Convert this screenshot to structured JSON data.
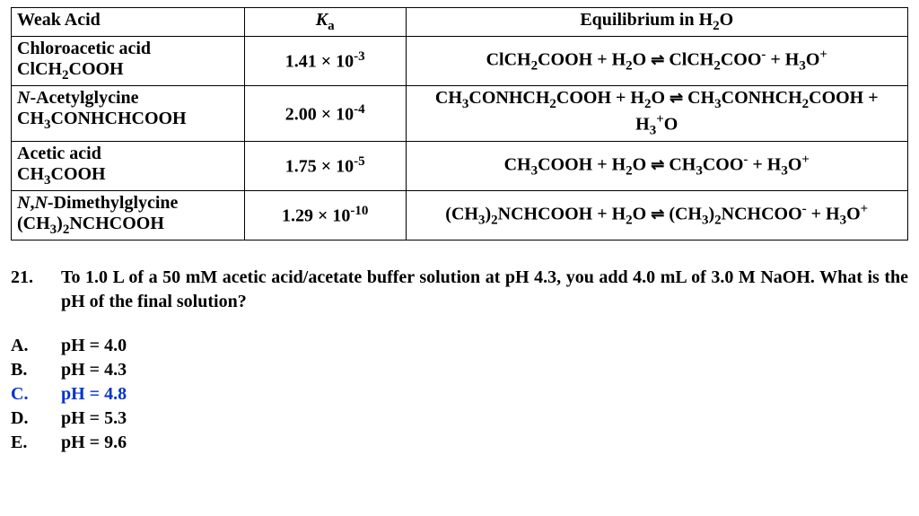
{
  "table": {
    "headers": {
      "col1": "Weak Acid",
      "col2_html": "<span class='ital'>K</span><span class='sub'>a</span>",
      "col3_html": "Equilibrium in H<span class='sub'>2</span>O"
    },
    "rows": [
      {
        "acid_html": "Chloroacetic acid<br>ClCH<span class='sub'>2</span>COOH",
        "ka_html": "1.41 × 10<span class='sup'>-3</span>",
        "eq_html": "ClCH<span class='sub'>2</span>COOH + H<span class='sub'>2</span>O <span class='eqarrow'>⇌</span> ClCH<span class='sub'>2</span>COO<span class='sup'>-</span> + H<span class='sub'>3</span>O<span class='sup'>+</span>"
      },
      {
        "acid_html": "<span class='ital'>N</span>-Acetylglycine<br>CH<span class='sub'>3</span>CONHCHCOOH",
        "ka_html": "2.00 × 10<span class='sup'>-4</span>",
        "eq_html": "CH<span class='sub'>3</span>CONHCH<span class='sub'>2</span>COOH + H<span class='sub'>2</span>O <span class='eqarrow'>⇌</span> CH<span class='sub'>3</span>CONHCH<span class='sub'>2</span>COOH +<br>H<span class='sub'>3</span><span class='sup'>+</span>O"
      },
      {
        "acid_html": "Acetic acid<br>CH<span class='sub'>3</span>COOH",
        "ka_html": "1.75 × 10<span class='sup'>-5</span>",
        "eq_html": "CH<span class='sub'>3</span>COOH + H<span class='sub'>2</span>O <span class='eqarrow'>⇌</span> CH<span class='sub'>3</span>COO<span class='sup'>-</span> + H<span class='sub'>3</span>O<span class='sup'>+</span>"
      },
      {
        "acid_html": "<span class='ital'>N</span>,<span class='ital'>N</span>-Dimethylglycine<br>(CH<span class='sub'>3</span>)<span class='sub'>2</span>NCHCOOH",
        "ka_html": "1.29 × 10<span class='sup'>-10</span>",
        "eq_html": "(CH<span class='sub'>3</span>)<span class='sub'>2</span>NCHCOOH + H<span class='sub'>2</span>O <span class='eqarrow'>⇌</span> (CH<span class='sub'>3</span>)<span class='sub'>2</span>NCHCOO<span class='sup'>-</span> + H<span class='sub'>3</span>O<span class='sup'>+</span>"
      }
    ]
  },
  "question": {
    "number": "21.",
    "text": "To 1.0 L of a 50 mM acetic acid/acetate buffer solution at pH 4.3, you add 4.0 mL of 3.0 M NaOH.  What is the pH of the final solution?"
  },
  "choices": [
    {
      "letter": "A.",
      "text": "pH = 4.0",
      "correct": false
    },
    {
      "letter": "B.",
      "text": "pH = 4.3",
      "correct": false
    },
    {
      "letter": "C.",
      "text": "pH = 4.8",
      "correct": true
    },
    {
      "letter": "D.",
      "text": "pH = 5.3",
      "correct": false
    },
    {
      "letter": "E.",
      "text": "pH = 9.6",
      "correct": false
    }
  ],
  "style": {
    "correct_color": "#0033cc",
    "font_family": "Times New Roman",
    "background": "#ffffff"
  }
}
